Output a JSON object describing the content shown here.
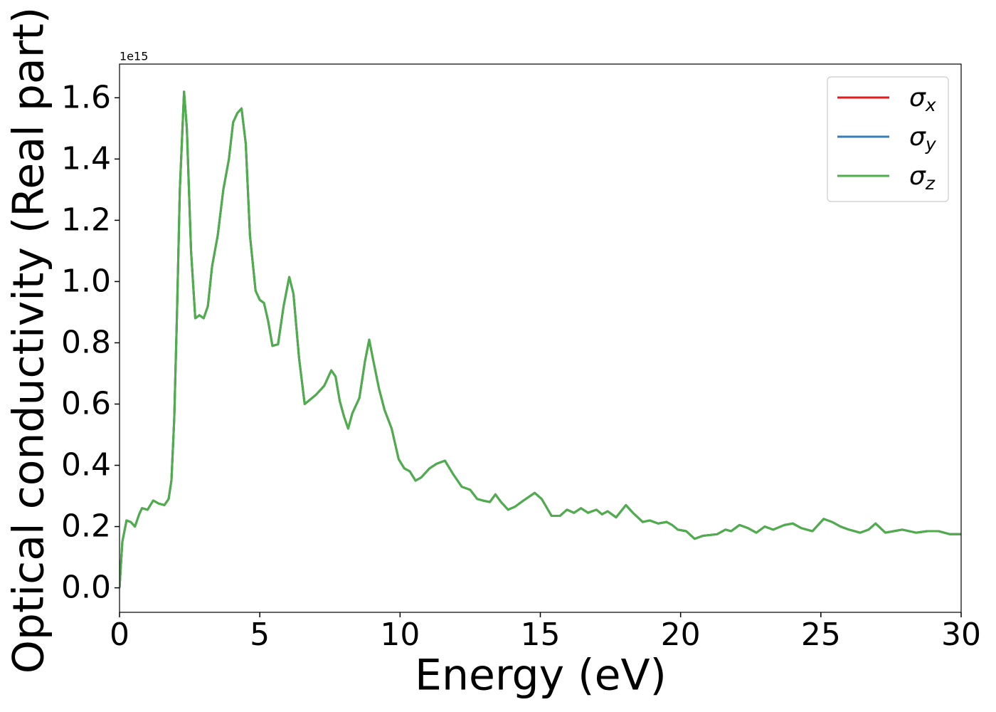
{
  "chart_data": {
    "type": "line",
    "ylabel": "Optical conductivity (Real part)",
    "xlabel": "Energy (eV)",
    "y_offset_label": "1e15",
    "xlim": [
      0,
      30
    ],
    "xticks": [
      0,
      5,
      10,
      15,
      20,
      25,
      30
    ],
    "ylim": [
      -0.08,
      1.71
    ],
    "yticks": [
      {
        "value": 0,
        "label": "0.0"
      },
      0.2,
      0.4,
      0.6,
      0.8,
      {
        "value": 1,
        "label": "1.0"
      },
      1.2,
      1.4,
      1.6
    ],
    "legend": "upper right",
    "x": [
      0,
      0.1,
      0.25,
      0.4,
      0.55,
      0.7,
      0.8,
      1.0,
      1.2,
      1.4,
      1.6,
      1.75,
      1.85,
      1.95,
      2.05,
      2.15,
      2.3,
      2.4,
      2.55,
      2.7,
      2.85,
      3.0,
      3.15,
      3.3,
      3.5,
      3.7,
      3.9,
      4.05,
      4.2,
      4.35,
      4.5,
      4.65,
      4.85,
      5.0,
      5.15,
      5.3,
      5.45,
      5.65,
      5.85,
      6.05,
      6.2,
      6.4,
      6.6,
      6.8,
      7.0,
      7.3,
      7.55,
      7.7,
      7.85,
      8.0,
      8.15,
      8.3,
      8.55,
      8.75,
      8.9,
      9.05,
      9.25,
      9.45,
      9.7,
      9.95,
      10.15,
      10.35,
      10.55,
      10.75,
      11.05,
      11.3,
      11.6,
      11.9,
      12.2,
      12.5,
      12.75,
      12.95,
      13.2,
      13.4,
      13.6,
      13.85,
      14.1,
      14.4,
      14.8,
      15.05,
      15.4,
      15.7,
      15.95,
      16.2,
      16.45,
      16.7,
      17.0,
      17.2,
      17.4,
      17.7,
      18.05,
      18.3,
      18.65,
      18.9,
      19.2,
      19.5,
      19.7,
      19.9,
      20.2,
      20.5,
      20.8,
      21.3,
      21.6,
      21.8,
      22.1,
      22.4,
      22.7,
      23.0,
      23.3,
      23.7,
      24.0,
      24.3,
      24.7,
      25.1,
      25.4,
      25.7,
      26.0,
      26.4,
      26.7,
      26.95,
      27.3,
      27.9,
      28.4,
      28.8,
      29.2,
      29.6,
      30.0
    ],
    "series": [
      {
        "name": "σx",
        "color": "#e41a1c",
        "values": [
          0,
          0.15,
          0.22,
          0.215,
          0.2,
          0.24,
          0.26,
          0.255,
          0.285,
          0.275,
          0.27,
          0.29,
          0.35,
          0.55,
          0.9,
          1.3,
          1.62,
          1.5,
          1.1,
          0.88,
          0.89,
          0.88,
          0.92,
          1.05,
          1.15,
          1.3,
          1.4,
          1.52,
          1.55,
          1.565,
          1.45,
          1.15,
          0.97,
          0.94,
          0.93,
          0.87,
          0.79,
          0.795,
          0.92,
          1.015,
          0.96,
          0.75,
          0.6,
          0.615,
          0.63,
          0.66,
          0.71,
          0.69,
          0.61,
          0.56,
          0.52,
          0.57,
          0.62,
          0.74,
          0.81,
          0.74,
          0.65,
          0.58,
          0.52,
          0.42,
          0.39,
          0.38,
          0.35,
          0.36,
          0.39,
          0.405,
          0.415,
          0.37,
          0.33,
          0.32,
          0.29,
          0.285,
          0.28,
          0.305,
          0.28,
          0.255,
          0.265,
          0.285,
          0.31,
          0.29,
          0.235,
          0.235,
          0.255,
          0.245,
          0.26,
          0.245,
          0.255,
          0.24,
          0.25,
          0.23,
          0.27,
          0.245,
          0.215,
          0.22,
          0.21,
          0.215,
          0.205,
          0.19,
          0.185,
          0.16,
          0.17,
          0.175,
          0.19,
          0.185,
          0.205,
          0.195,
          0.18,
          0.2,
          0.19,
          0.205,
          0.21,
          0.195,
          0.185,
          0.225,
          0.215,
          0.2,
          0.19,
          0.18,
          0.19,
          0.21,
          0.18,
          0.19,
          0.18,
          0.185,
          0.185,
          0.175,
          0.175
        ]
      },
      {
        "name": "σy",
        "color": "#377eb8",
        "values": [
          0,
          0.15,
          0.22,
          0.215,
          0.2,
          0.24,
          0.26,
          0.255,
          0.285,
          0.275,
          0.27,
          0.29,
          0.35,
          0.55,
          0.9,
          1.3,
          1.62,
          1.5,
          1.1,
          0.88,
          0.89,
          0.88,
          0.92,
          1.05,
          1.15,
          1.3,
          1.4,
          1.52,
          1.55,
          1.565,
          1.45,
          1.15,
          0.97,
          0.94,
          0.93,
          0.87,
          0.79,
          0.795,
          0.92,
          1.015,
          0.96,
          0.75,
          0.6,
          0.615,
          0.63,
          0.66,
          0.71,
          0.69,
          0.61,
          0.56,
          0.52,
          0.57,
          0.62,
          0.74,
          0.81,
          0.74,
          0.65,
          0.58,
          0.52,
          0.42,
          0.39,
          0.38,
          0.35,
          0.36,
          0.39,
          0.405,
          0.415,
          0.37,
          0.33,
          0.32,
          0.29,
          0.285,
          0.28,
          0.305,
          0.28,
          0.255,
          0.265,
          0.285,
          0.31,
          0.29,
          0.235,
          0.235,
          0.255,
          0.245,
          0.26,
          0.245,
          0.255,
          0.24,
          0.25,
          0.23,
          0.27,
          0.245,
          0.215,
          0.22,
          0.21,
          0.215,
          0.205,
          0.19,
          0.185,
          0.16,
          0.17,
          0.175,
          0.19,
          0.185,
          0.205,
          0.195,
          0.18,
          0.2,
          0.19,
          0.205,
          0.21,
          0.195,
          0.185,
          0.225,
          0.215,
          0.2,
          0.19,
          0.18,
          0.19,
          0.21,
          0.18,
          0.19,
          0.18,
          0.185,
          0.185,
          0.175,
          0.175
        ]
      },
      {
        "name": "σz",
        "color": "#4daf4a",
        "values": [
          0,
          0.15,
          0.22,
          0.215,
          0.2,
          0.24,
          0.26,
          0.255,
          0.285,
          0.275,
          0.27,
          0.29,
          0.35,
          0.55,
          0.9,
          1.3,
          1.62,
          1.5,
          1.1,
          0.88,
          0.89,
          0.88,
          0.92,
          1.05,
          1.15,
          1.3,
          1.4,
          1.52,
          1.55,
          1.565,
          1.45,
          1.15,
          0.97,
          0.94,
          0.93,
          0.87,
          0.79,
          0.795,
          0.92,
          1.015,
          0.96,
          0.75,
          0.6,
          0.615,
          0.63,
          0.66,
          0.71,
          0.69,
          0.61,
          0.56,
          0.52,
          0.57,
          0.62,
          0.74,
          0.81,
          0.74,
          0.65,
          0.58,
          0.52,
          0.42,
          0.39,
          0.38,
          0.35,
          0.36,
          0.39,
          0.405,
          0.415,
          0.37,
          0.33,
          0.32,
          0.29,
          0.285,
          0.28,
          0.305,
          0.28,
          0.255,
          0.265,
          0.285,
          0.31,
          0.29,
          0.235,
          0.235,
          0.255,
          0.245,
          0.26,
          0.245,
          0.255,
          0.24,
          0.25,
          0.23,
          0.27,
          0.245,
          0.215,
          0.22,
          0.21,
          0.215,
          0.205,
          0.19,
          0.185,
          0.16,
          0.17,
          0.175,
          0.19,
          0.185,
          0.205,
          0.195,
          0.18,
          0.2,
          0.19,
          0.205,
          0.21,
          0.195,
          0.185,
          0.225,
          0.215,
          0.2,
          0.19,
          0.18,
          0.19,
          0.21,
          0.18,
          0.19,
          0.18,
          0.185,
          0.185,
          0.175,
          0.175
        ]
      }
    ]
  }
}
